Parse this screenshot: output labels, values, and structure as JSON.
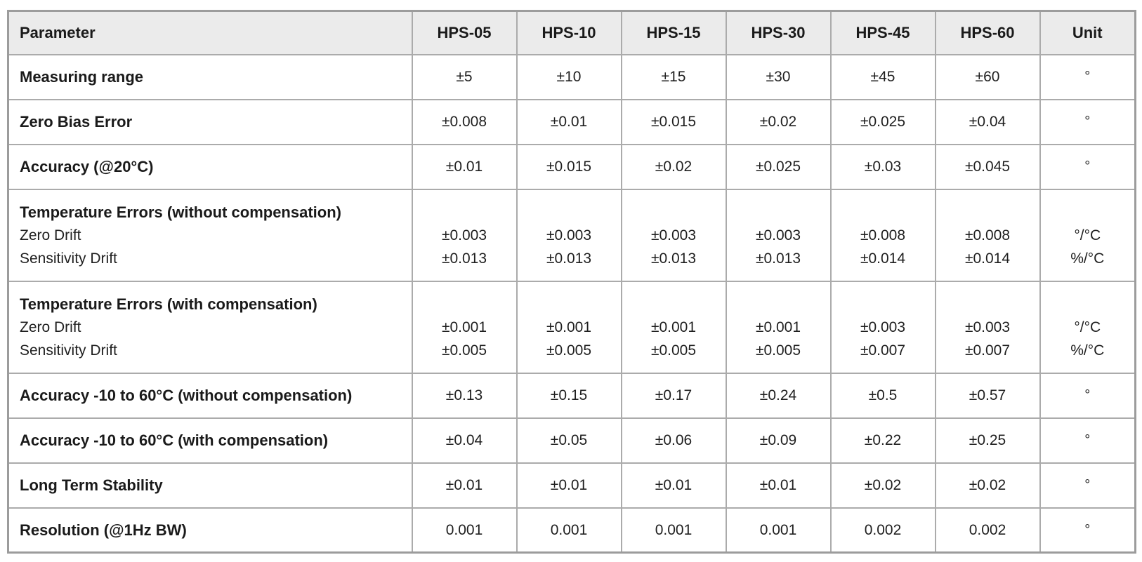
{
  "table": {
    "columns": [
      "Parameter",
      "HPS-05",
      "HPS-10",
      "HPS-15",
      "HPS-30",
      "HPS-45",
      "HPS-60",
      "Unit"
    ],
    "rows": [
      {
        "parameter": "Measuring range",
        "sub_parameters": [],
        "values": [
          [
            "±5"
          ],
          [
            "±10"
          ],
          [
            "±15"
          ],
          [
            "±30"
          ],
          [
            "±45"
          ],
          [
            "±60"
          ]
        ],
        "units": [
          "°"
        ]
      },
      {
        "parameter": "Zero Bias Error",
        "sub_parameters": [],
        "values": [
          [
            "±0.008"
          ],
          [
            "±0.01"
          ],
          [
            "±0.015"
          ],
          [
            "±0.02"
          ],
          [
            "±0.025"
          ],
          [
            "±0.04"
          ]
        ],
        "units": [
          "°"
        ]
      },
      {
        "parameter": "Accuracy (@20°C)",
        "sub_parameters": [],
        "values": [
          [
            "±0.01"
          ],
          [
            "±0.015"
          ],
          [
            "±0.02"
          ],
          [
            "±0.025"
          ],
          [
            "±0.03"
          ],
          [
            "±0.045"
          ]
        ],
        "units": [
          "°"
        ]
      },
      {
        "parameter": "Temperature Errors (without compensation)",
        "sub_parameters": [
          "Zero Drift",
          "Sensitivity Drift"
        ],
        "values": [
          [
            "±0.003",
            "±0.013"
          ],
          [
            "±0.003",
            "±0.013"
          ],
          [
            "±0.003",
            "±0.013"
          ],
          [
            "±0.003",
            "±0.013"
          ],
          [
            "±0.008",
            "±0.014"
          ],
          [
            "±0.008",
            "±0.014"
          ]
        ],
        "units": [
          "°/°C",
          "%/°C"
        ]
      },
      {
        "parameter": "Temperature Errors (with compensation)",
        "sub_parameters": [
          "Zero Drift",
          "Sensitivity Drift"
        ],
        "values": [
          [
            "±0.001",
            "±0.005"
          ],
          [
            "±0.001",
            "±0.005"
          ],
          [
            "±0.001",
            "±0.005"
          ],
          [
            "±0.001",
            "±0.005"
          ],
          [
            "±0.003",
            "±0.007"
          ],
          [
            "±0.003",
            "±0.007"
          ]
        ],
        "units": [
          "°/°C",
          "%/°C"
        ]
      },
      {
        "parameter": "Accuracy -10 to 60°C (without compensation)",
        "sub_parameters": [],
        "values": [
          [
            "±0.13"
          ],
          [
            "±0.15"
          ],
          [
            "±0.17"
          ],
          [
            "±0.24"
          ],
          [
            "±0.5"
          ],
          [
            "±0.57"
          ]
        ],
        "units": [
          "°"
        ]
      },
      {
        "parameter": "Accuracy -10 to 60°C (with compensation)",
        "sub_parameters": [],
        "values": [
          [
            "±0.04"
          ],
          [
            "±0.05"
          ],
          [
            "±0.06"
          ],
          [
            "±0.09"
          ],
          [
            "±0.22"
          ],
          [
            "±0.25"
          ]
        ],
        "units": [
          "°"
        ]
      },
      {
        "parameter": "Long Term Stability",
        "sub_parameters": [],
        "values": [
          [
            "±0.01"
          ],
          [
            "±0.01"
          ],
          [
            "±0.01"
          ],
          [
            "±0.01"
          ],
          [
            "±0.02"
          ],
          [
            "±0.02"
          ]
        ],
        "units": [
          "°"
        ]
      },
      {
        "parameter": "Resolution (@1Hz BW)",
        "sub_parameters": [],
        "values": [
          [
            "0.001"
          ],
          [
            "0.001"
          ],
          [
            "0.001"
          ],
          [
            "0.001"
          ],
          [
            "0.002"
          ],
          [
            "0.002"
          ]
        ],
        "units": [
          "°"
        ]
      }
    ]
  },
  "chart_data": {
    "type": "table",
    "columns": [
      "Parameter",
      "HPS-05",
      "HPS-10",
      "HPS-15",
      "HPS-30",
      "HPS-45",
      "HPS-60",
      "Unit"
    ],
    "rows": [
      [
        "Measuring range",
        "±5",
        "±10",
        "±15",
        "±30",
        "±45",
        "±60",
        "°"
      ],
      [
        "Zero Bias Error",
        "±0.008",
        "±0.01",
        "±0.015",
        "±0.02",
        "±0.025",
        "±0.04",
        "°"
      ],
      [
        "Accuracy (@20°C)",
        "±0.01",
        "±0.015",
        "±0.02",
        "±0.025",
        "±0.03",
        "±0.045",
        "°"
      ],
      [
        "Temperature Errors (without compensation)\nZero Drift\nSensitivity Drift",
        "±0.003\n±0.013",
        "±0.003\n±0.013",
        "±0.003\n±0.013",
        "±0.003\n±0.013",
        "±0.008\n±0.014",
        "±0.008\n±0.014",
        "°/°C\n%/°C"
      ],
      [
        "Temperature Errors (with compensation)\nZero Drift\nSensitivity Drift",
        "±0.001\n±0.005",
        "±0.001\n±0.005",
        "±0.001\n±0.005",
        "±0.001\n±0.005",
        "±0.003\n±0.007",
        "±0.003\n±0.007",
        "°/°C\n%/°C"
      ],
      [
        "Accuracy -10 to 60°C (without compensation)",
        "±0.13",
        "±0.15",
        "±0.17",
        "±0.24",
        "±0.5",
        "±0.57",
        "°"
      ],
      [
        "Accuracy -10 to 60°C (with compensation)",
        "±0.04",
        "±0.05",
        "±0.06",
        "±0.09",
        "±0.22",
        "±0.25",
        "°"
      ],
      [
        "Long Term Stability",
        "±0.01",
        "±0.01",
        "±0.01",
        "±0.01",
        "±0.02",
        "±0.02",
        "°"
      ],
      [
        "Resolution (@1Hz BW)",
        "0.001",
        "0.001",
        "0.001",
        "0.001",
        "0.002",
        "0.002",
        "°"
      ]
    ]
  }
}
